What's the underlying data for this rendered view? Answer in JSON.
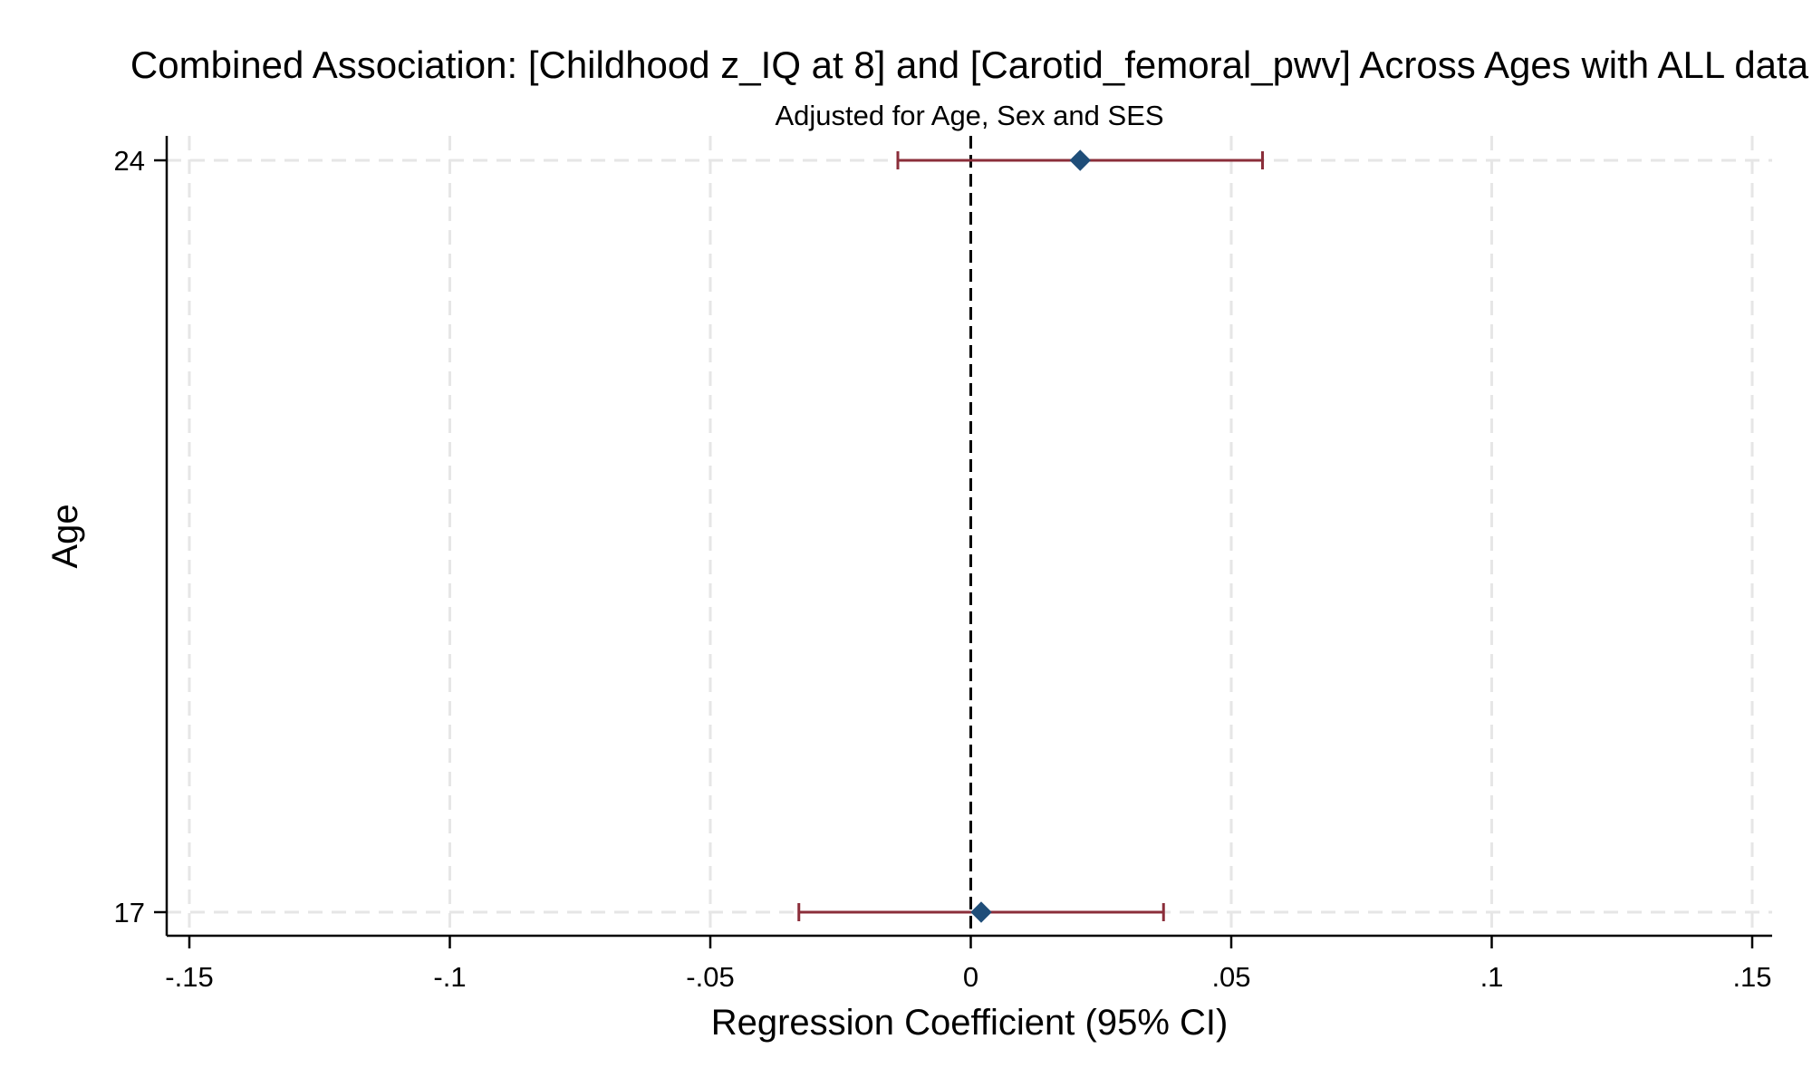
{
  "chart_data": {
    "type": "scatter",
    "subtype": "coefficient-plot-with-95ci",
    "orientation": "horizontal",
    "title": "Combined Association: [Childhood z_IQ at 8] and [Carotid_femoral_pwv] Across Ages with ALL data",
    "subtitle": "Adjusted for Age, Sex and SES",
    "xlabel": "Regression Coefficient (95% CI)",
    "ylabel": "Age",
    "xlim": [
      -0.15,
      0.15
    ],
    "ylim": [
      17,
      24
    ],
    "x_ticks": [
      -0.15,
      -0.1,
      -0.05,
      0,
      0.05,
      0.1,
      0.15
    ],
    "x_tick_labels": [
      "-.15",
      "-.1",
      "-.05",
      "0",
      ".05",
      ".1",
      ".15"
    ],
    "y_ticks": [
      17,
      24
    ],
    "y_tick_labels": [
      "17",
      "24"
    ],
    "grid": true,
    "reference_line_x": 0,
    "points": [
      {
        "age": 24,
        "coef": 0.021,
        "ci_low": -0.014,
        "ci_high": 0.056
      },
      {
        "age": 17,
        "coef": 0.002,
        "ci_low": -0.033,
        "ci_high": 0.037
      }
    ],
    "colors": {
      "marker": "#1f4e79",
      "ci": "#8b2e3a",
      "grid": "#e6e6e6",
      "axis": "#000000",
      "reference": "#000000"
    }
  }
}
